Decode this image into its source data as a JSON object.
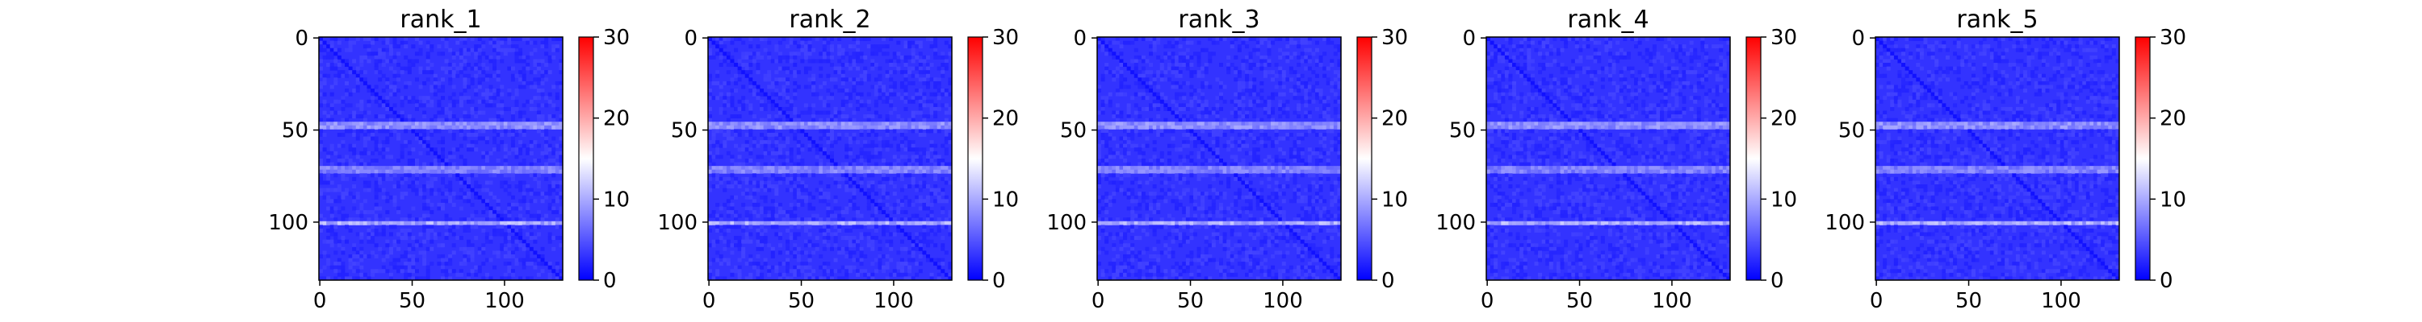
{
  "chart_data": [
    {
      "type": "heatmap",
      "title": "rank_1",
      "matrix_size": 132,
      "x_ticks": [
        0,
        50,
        100
      ],
      "y_ticks": [
        0,
        50,
        100
      ],
      "colorbar": {
        "min": 0,
        "max": 30,
        "ticks": [
          0,
          10,
          20,
          30
        ],
        "colormap": "bwr"
      },
      "grid": false,
      "typical_value": 3,
      "features": [
        {
          "kind": "diagonal",
          "value": 1
        },
        {
          "kind": "row_band",
          "rows": [
            47,
            49
          ],
          "value": 10
        },
        {
          "kind": "row_band",
          "rows": [
            71,
            73
          ],
          "value": 9
        },
        {
          "kind": "row_band",
          "rows": [
            100,
            101
          ],
          "value": 12
        }
      ]
    },
    {
      "type": "heatmap",
      "title": "rank_2",
      "matrix_size": 132,
      "x_ticks": [
        0,
        50,
        100
      ],
      "y_ticks": [
        0,
        50,
        100
      ],
      "colorbar": {
        "min": 0,
        "max": 30,
        "ticks": [
          0,
          10,
          20,
          30
        ],
        "colormap": "bwr"
      },
      "grid": false,
      "typical_value": 3,
      "features": [
        {
          "kind": "diagonal",
          "value": 1
        },
        {
          "kind": "row_band",
          "rows": [
            47,
            49
          ],
          "value": 10
        },
        {
          "kind": "row_band",
          "rows": [
            71,
            73
          ],
          "value": 9
        },
        {
          "kind": "row_band",
          "rows": [
            100,
            101
          ],
          "value": 12
        }
      ]
    },
    {
      "type": "heatmap",
      "title": "rank_3",
      "matrix_size": 132,
      "x_ticks": [
        0,
        50,
        100
      ],
      "y_ticks": [
        0,
        50,
        100
      ],
      "colorbar": {
        "min": 0,
        "max": 30,
        "ticks": [
          0,
          10,
          20,
          30
        ],
        "colormap": "bwr"
      },
      "grid": false,
      "typical_value": 3,
      "features": [
        {
          "kind": "diagonal",
          "value": 1
        },
        {
          "kind": "row_band",
          "rows": [
            47,
            49
          ],
          "value": 10
        },
        {
          "kind": "row_band",
          "rows": [
            71,
            73
          ],
          "value": 9
        },
        {
          "kind": "row_band",
          "rows": [
            100,
            101
          ],
          "value": 12
        }
      ]
    },
    {
      "type": "heatmap",
      "title": "rank_4",
      "matrix_size": 132,
      "x_ticks": [
        0,
        50,
        100
      ],
      "y_ticks": [
        0,
        50,
        100
      ],
      "colorbar": {
        "min": 0,
        "max": 30,
        "ticks": [
          0,
          10,
          20,
          30
        ],
        "colormap": "bwr"
      },
      "grid": false,
      "typical_value": 3,
      "features": [
        {
          "kind": "diagonal",
          "value": 1
        },
        {
          "kind": "row_band",
          "rows": [
            47,
            49
          ],
          "value": 10
        },
        {
          "kind": "row_band",
          "rows": [
            71,
            73
          ],
          "value": 9
        },
        {
          "kind": "row_band",
          "rows": [
            100,
            101
          ],
          "value": 12
        }
      ]
    },
    {
      "type": "heatmap",
      "title": "rank_5",
      "matrix_size": 132,
      "x_ticks": [
        0,
        50,
        100
      ],
      "y_ticks": [
        0,
        50,
        100
      ],
      "colorbar": {
        "min": 0,
        "max": 30,
        "ticks": [
          0,
          10,
          20,
          30
        ],
        "colormap": "bwr"
      },
      "grid": false,
      "typical_value": 3,
      "features": [
        {
          "kind": "diagonal",
          "value": 1
        },
        {
          "kind": "row_band",
          "rows": [
            47,
            49
          ],
          "value": 10
        },
        {
          "kind": "row_band",
          "rows": [
            71,
            73
          ],
          "value": 9
        },
        {
          "kind": "row_band",
          "rows": [
            100,
            101
          ],
          "value": 12
        }
      ]
    }
  ]
}
